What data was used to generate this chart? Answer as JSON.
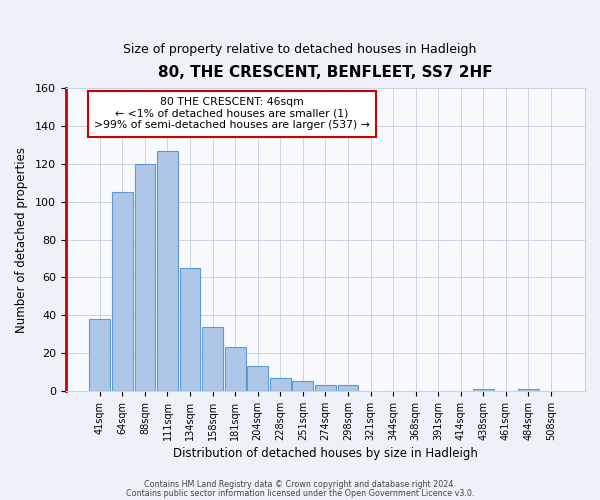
{
  "title": "80, THE CRESCENT, BENFLEET, SS7 2HF",
  "subtitle": "Size of property relative to detached houses in Hadleigh",
  "xlabel": "Distribution of detached houses by size in Hadleigh",
  "ylabel": "Number of detached properties",
  "bin_labels": [
    "41sqm",
    "64sqm",
    "88sqm",
    "111sqm",
    "134sqm",
    "158sqm",
    "181sqm",
    "204sqm",
    "228sqm",
    "251sqm",
    "274sqm",
    "298sqm",
    "321sqm",
    "344sqm",
    "368sqm",
    "391sqm",
    "414sqm",
    "438sqm",
    "461sqm",
    "484sqm",
    "508sqm"
  ],
  "bar_heights": [
    38,
    105,
    120,
    127,
    65,
    34,
    23,
    13,
    7,
    5,
    3,
    3,
    0,
    0,
    0,
    0,
    0,
    1,
    0,
    1,
    0
  ],
  "bar_color": "#aec6e8",
  "bar_edge_color": "#5b9bd5",
  "ylim": [
    0,
    160
  ],
  "yticks": [
    0,
    20,
    40,
    60,
    80,
    100,
    120,
    140,
    160
  ],
  "annotation_title": "80 THE CRESCENT: 46sqm",
  "annotation_line1": "← <1% of detached houses are smaller (1)",
  "annotation_line2": ">99% of semi-detached houses are larger (537) →",
  "annotation_box_color": "#ffffff",
  "annotation_box_edge": "#cc0000",
  "red_line_x": -0.5,
  "footer1": "Contains HM Land Registry data © Crown copyright and database right 2024.",
  "footer2": "Contains public sector information licensed under the Open Government Licence v3.0.",
  "bg_color": "#eef2f8",
  "plot_bg_color": "#f8fafd",
  "grid_color": "#c8d4e8"
}
